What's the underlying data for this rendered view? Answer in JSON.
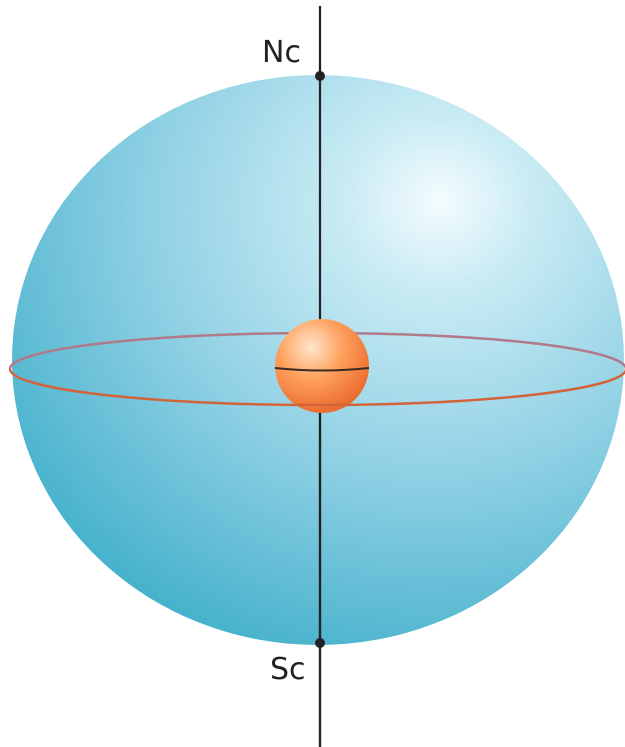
{
  "labels": {
    "north_celestial_pole": "Nc",
    "south_celestial_pole": "Sc"
  },
  "colors": {
    "sphere_light": "#f2fbfe",
    "sphere_mid": "#8fd0e4",
    "sphere_dark": "#3eaec9",
    "axis": "#222222",
    "equator_front": "#d2643a",
    "equator_back": "#b07a8a",
    "earth_light": "#ffe3c8",
    "earth_mid": "#ff9a55",
    "earth_dark": "#e8662a"
  }
}
